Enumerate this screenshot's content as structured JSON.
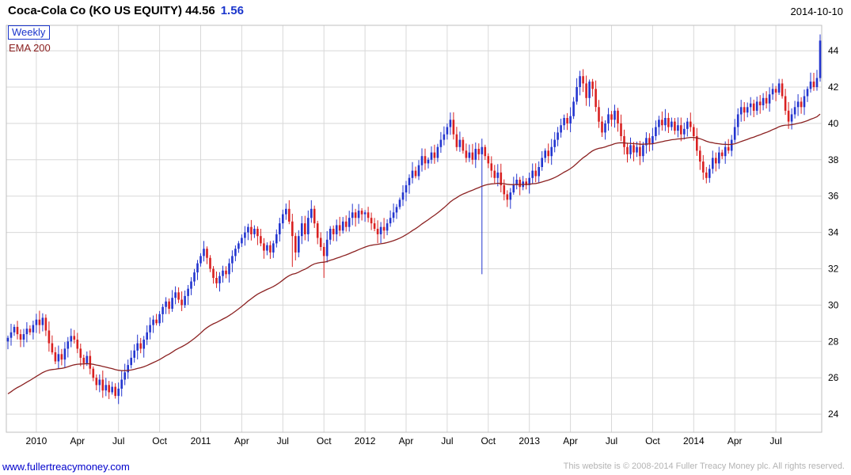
{
  "header": {
    "title": "Coca-Cola Co (KO US EQUITY) 44.56",
    "change": "1.56",
    "date": "2014-10-10"
  },
  "legend": {
    "series": "Weekly",
    "overlay": "EMA 200"
  },
  "footer": {
    "link": "www.fullertreacymoney.com",
    "copyright": "This website is © 2008-2014 Fuller Treacy Money plc. All rights reserved."
  },
  "colors": {
    "up": "#2335cf",
    "down": "#d92121",
    "ema": "#8b2121",
    "grid": "#d8d8d8",
    "border": "#bfbfbf",
    "title": "#000000",
    "change": "#1a35cc",
    "link": "#0000cc",
    "copyright": "#b3b3b3"
  },
  "chart_data": {
    "type": "candlestick",
    "period": "weekly",
    "instrument": "Coca-Cola Co (KO US EQUITY)",
    "last": 44.56,
    "change": 1.56,
    "as_of": "2014-10-10",
    "ylim": [
      23.0,
      45.4
    ],
    "y_ticks": [
      24,
      26,
      28,
      30,
      32,
      34,
      36,
      38,
      40,
      42,
      44
    ],
    "x_ticks": [
      {
        "label": "2010",
        "week": 9
      },
      {
        "label": "Apr",
        "week": 22
      },
      {
        "label": "Jul",
        "week": 35
      },
      {
        "label": "Oct",
        "week": 48
      },
      {
        "label": "2011",
        "week": 61
      },
      {
        "label": "Apr",
        "week": 74
      },
      {
        "label": "Jul",
        "week": 87
      },
      {
        "label": "Oct",
        "week": 100
      },
      {
        "label": "2012",
        "week": 113
      },
      {
        "label": "Apr",
        "week": 126
      },
      {
        "label": "Jul",
        "week": 139
      },
      {
        "label": "Oct",
        "week": 152
      },
      {
        "label": "2013",
        "week": 165
      },
      {
        "label": "Apr",
        "week": 178
      },
      {
        "label": "Jul",
        "week": 191
      },
      {
        "label": "Oct",
        "week": 204
      },
      {
        "label": "2014",
        "week": 217
      },
      {
        "label": "Apr",
        "week": 230
      },
      {
        "label": "Jul",
        "week": 243
      }
    ],
    "first_open": 28.0,
    "closes": [
      28.2,
      28.5,
      28.8,
      28.4,
      28.1,
      28.4,
      28.7,
      28.5,
      28.9,
      29.2,
      28.9,
      29.3,
      28.6,
      27.9,
      27.4,
      26.9,
      27.3,
      27.0,
      27.6,
      28.0,
      28.3,
      28.1,
      27.6,
      27.1,
      26.8,
      27.2,
      26.5,
      26.0,
      25.6,
      25.9,
      25.3,
      25.6,
      25.2,
      25.5,
      25.0,
      25.4,
      25.9,
      26.3,
      26.7,
      27.1,
      27.5,
      27.9,
      27.6,
      28.1,
      28.5,
      28.9,
      29.2,
      29.0,
      29.5,
      29.9,
      30.2,
      29.8,
      30.4,
      30.7,
      30.3,
      30.0,
      30.5,
      30.9,
      31.3,
      31.8,
      32.3,
      32.7,
      33.1,
      32.6,
      32.0,
      31.5,
      31.2,
      31.6,
      31.9,
      31.7,
      32.3,
      32.7,
      33.1,
      33.4,
      33.7,
      34.0,
      34.3,
      33.9,
      34.2,
      33.8,
      33.4,
      33.0,
      33.3,
      32.9,
      33.4,
      33.9,
      34.5,
      35.0,
      35.3,
      34.6,
      33.8,
      32.9,
      33.8,
      34.5,
      33.9,
      34.8,
      35.3,
      34.5,
      33.7,
      33.2,
      32.7,
      33.6,
      34.2,
      33.9,
      34.4,
      34.1,
      34.6,
      34.3,
      34.8,
      35.1,
      34.8,
      35.2,
      35.0,
      35.1,
      34.8,
      34.5,
      34.2,
      33.9,
      34.3,
      34.1,
      34.5,
      34.8,
      35.1,
      35.4,
      35.8,
      36.2,
      36.6,
      37.0,
      37.4,
      37.1,
      37.7,
      38.2,
      37.8,
      38.0,
      38.4,
      38.1,
      38.7,
      39.1,
      39.4,
      39.8,
      40.2,
      39.4,
      38.7,
      39.1,
      38.5,
      38.1,
      38.4,
      38.0,
      38.6,
      38.3,
      38.7,
      38.2,
      37.8,
      37.4,
      37.0,
      37.3,
      36.6,
      36.1,
      35.8,
      36.2,
      36.6,
      36.9,
      36.5,
      36.8,
      36.6,
      37.0,
      37.4,
      37.1,
      37.6,
      38.1,
      38.5,
      38.2,
      38.7,
      39.1,
      39.5,
      39.9,
      40.3,
      40.0,
      40.4,
      41.2,
      42.0,
      42.6,
      42.2,
      41.4,
      42.3,
      41.9,
      40.9,
      40.1,
      39.5,
      40.0,
      40.5,
      40.2,
      40.7,
      40.0,
      39.3,
      38.7,
      38.3,
      38.8,
      38.4,
      38.7,
      38.2,
      38.8,
      39.2,
      38.9,
      39.3,
      39.8,
      40.2,
      39.9,
      40.3,
      39.8,
      40.1,
      39.6,
      39.9,
      39.4,
      39.7,
      40.1,
      39.8,
      39.3,
      38.5,
      37.9,
      37.3,
      37.0,
      37.5,
      38.1,
      37.8,
      38.4,
      38.2,
      38.7,
      38.5,
      39.1,
      39.8,
      40.5,
      40.9,
      40.6,
      40.9,
      41.1,
      40.7,
      41.2,
      41.0,
      41.4,
      41.1,
      41.6,
      41.9,
      41.7,
      42.2,
      41.5,
      40.7,
      40.1,
      40.5,
      40.9,
      41.2,
      40.9,
      41.5,
      41.9,
      42.3,
      42.0,
      42.5,
      44.56
    ],
    "wick_overrides": {
      "11": {
        "high": 29.55
      },
      "34": {
        "low": 24.85
      },
      "90": {
        "low": 32.1
      },
      "100": {
        "low": 31.5
      },
      "140": {
        "high": 40.6
      },
      "150": {
        "low": 31.7
      },
      "158": {
        "low": 35.4
      },
      "181": {
        "high": 42.9
      },
      "221": {
        "low": 36.7
      },
      "247": {
        "low": 39.7
      },
      "257": {
        "high": 44.9,
        "low": 42.3
      }
    },
    "overlay": {
      "name": "EMA 200",
      "method": "ema",
      "k": 0.035,
      "seed": 25.0
    }
  }
}
